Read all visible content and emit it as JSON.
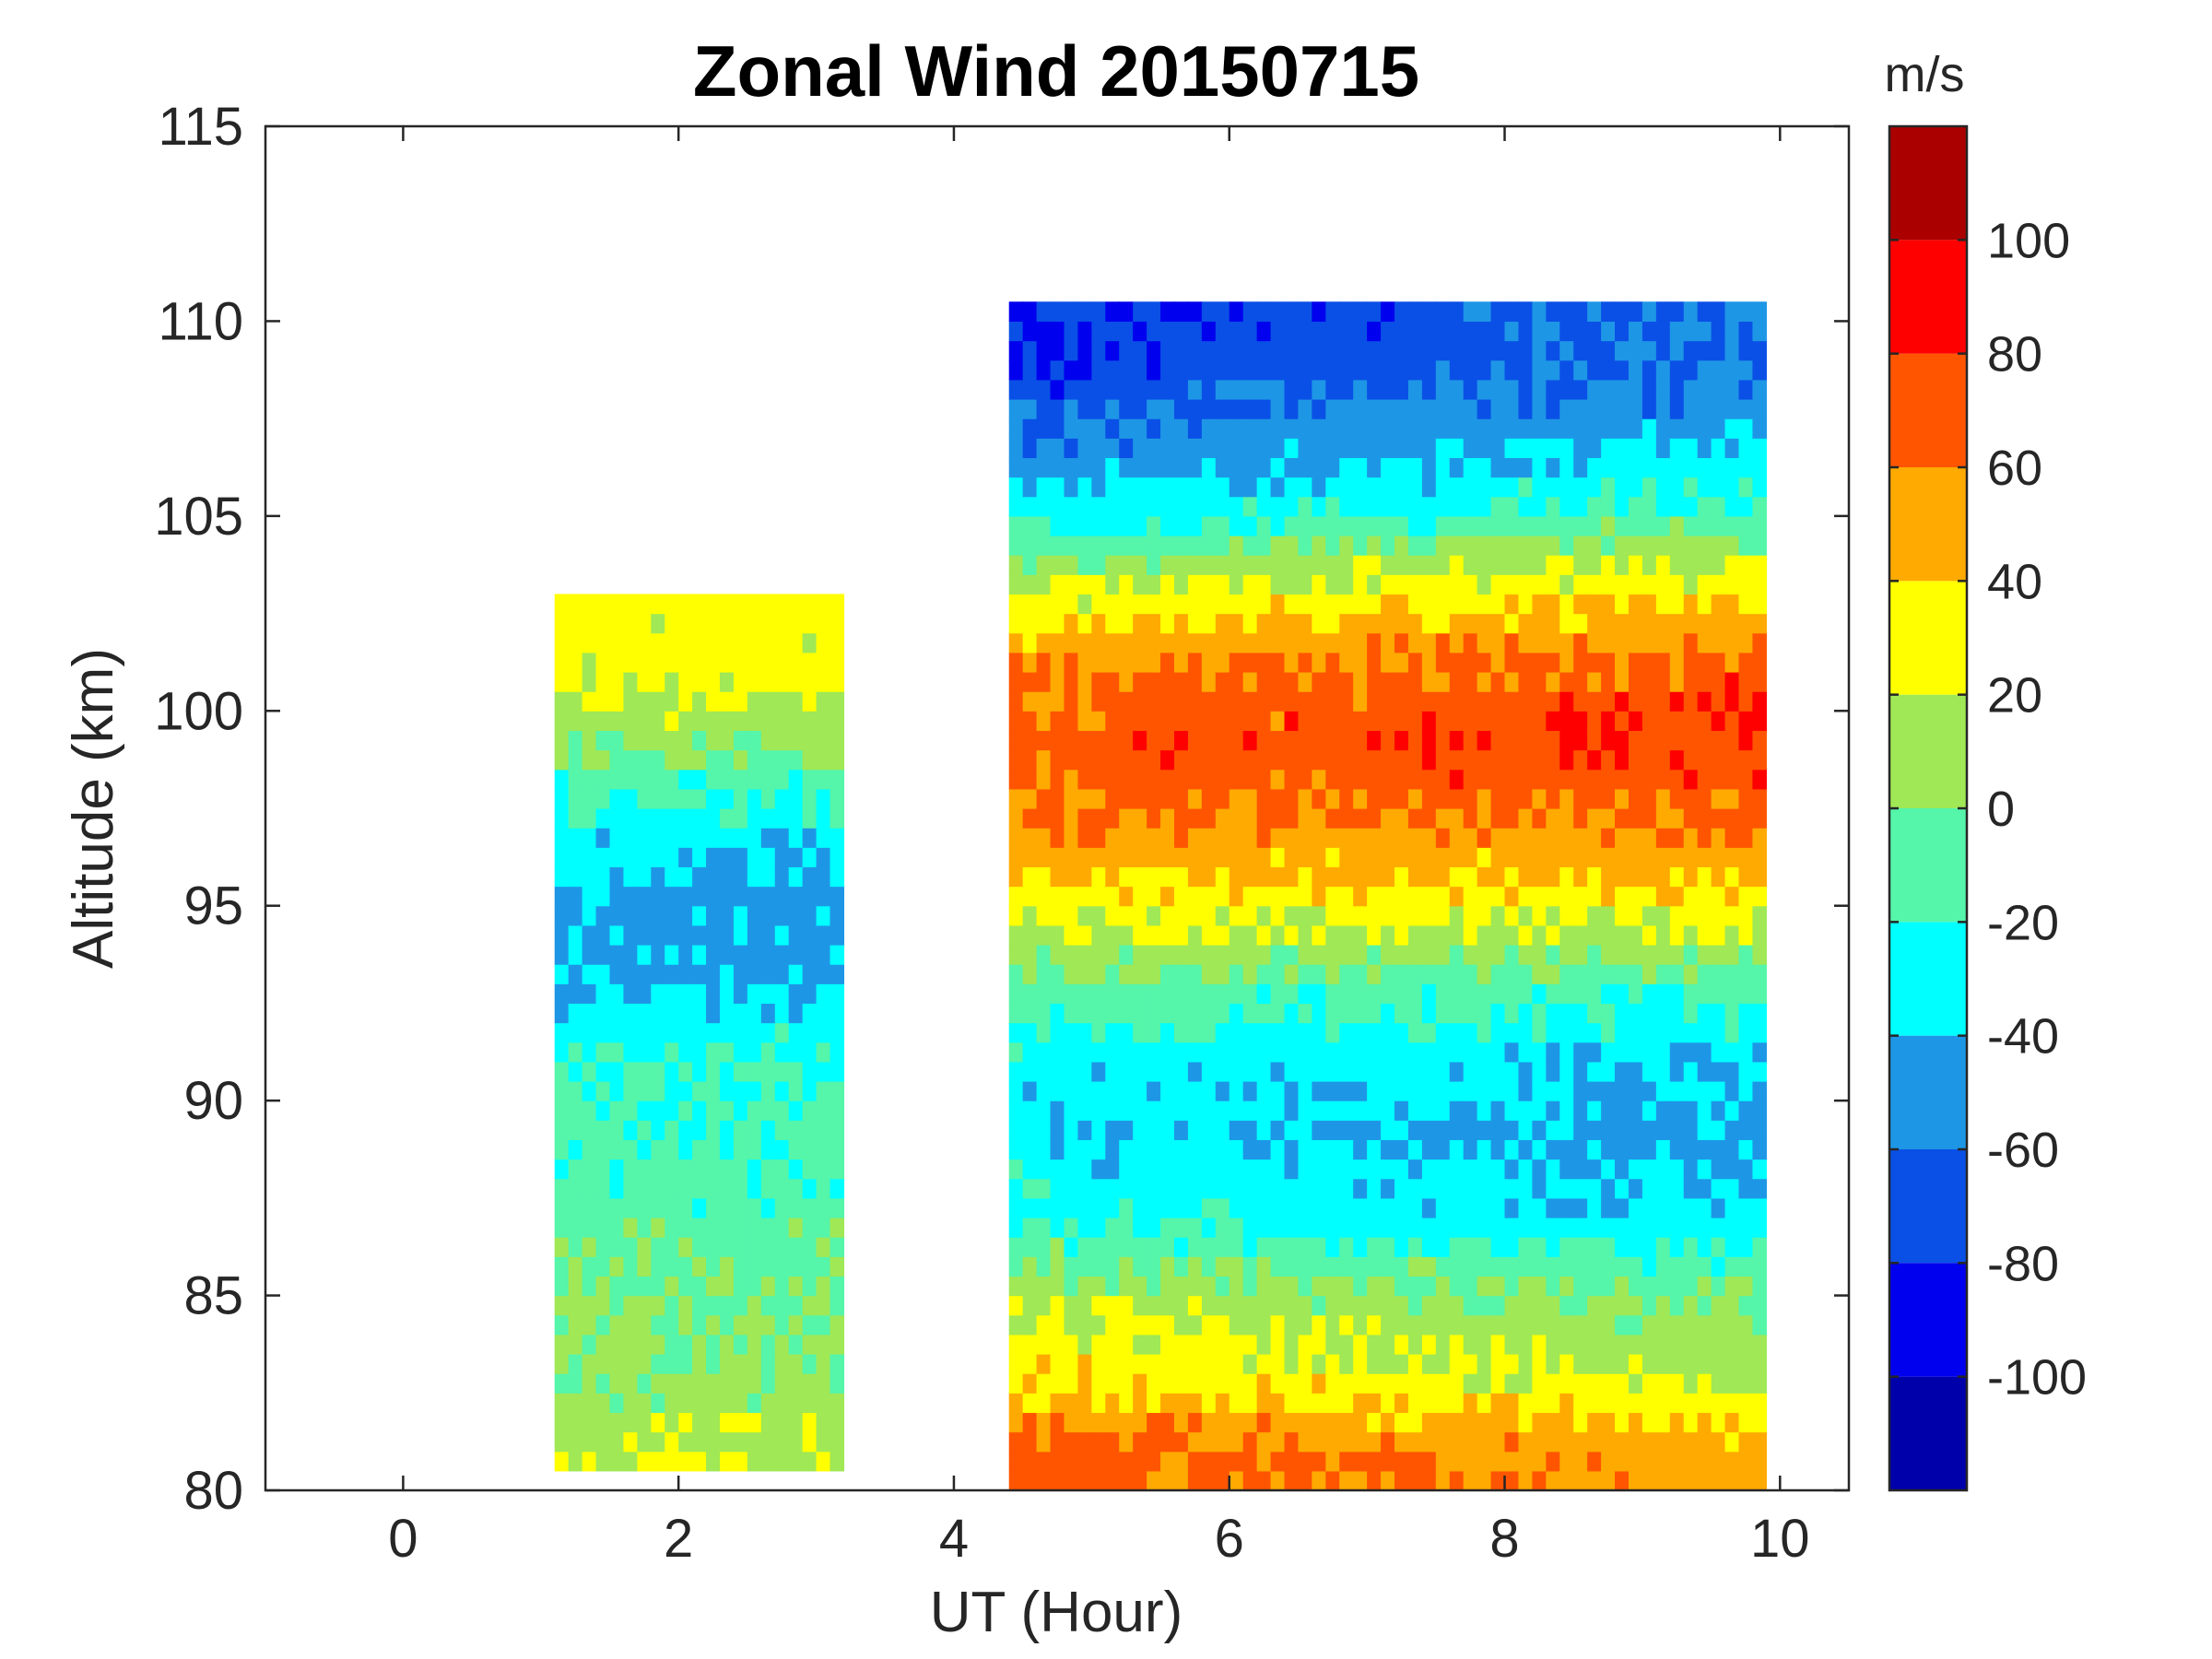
{
  "chart_data": {
    "type": "heatmap",
    "subtype": "filled-contour",
    "title": "Zonal Wind 20150715",
    "xlabel": "UT (Hour)",
    "ylabel": "Altitude (km)",
    "xlim": [
      -1,
      10.5
    ],
    "ylim": [
      80,
      115
    ],
    "xticks": [
      0,
      2,
      4,
      6,
      8,
      10
    ],
    "yticks": [
      80,
      85,
      90,
      95,
      100,
      105,
      110,
      115
    ],
    "colorbar": {
      "label": "m/s",
      "limits": [
        -120,
        120
      ],
      "levels": [
        -120,
        -100,
        -80,
        -60,
        -40,
        -20,
        0,
        20,
        40,
        60,
        80,
        100,
        120
      ],
      "ticks": [
        -100,
        -80,
        -60,
        -40,
        -20,
        0,
        20,
        40,
        60,
        80,
        100
      ],
      "colors": [
        "#0000aa",
        "#0000ee",
        "#0a50e6",
        "#1e96e6",
        "#00ffff",
        "#55f5aa",
        "#a0e855",
        "#ffff00",
        "#ffaa00",
        "#ff5500",
        "#ff0000",
        "#aa0000"
      ]
    },
    "grid": false,
    "data_blocks": [
      {
        "name": "block-1",
        "x_range": [
          1.1,
          3.2
        ],
        "alt_range": [
          80.5,
          103
        ],
        "altitudes_km": [
          81,
          83,
          85,
          87,
          89,
          91,
          93,
          95,
          97,
          99,
          101
        ],
        "zonal_wind_ms": [
          15,
          5,
          0,
          -10,
          -15,
          -20,
          -40,
          -50,
          -30,
          0,
          30
        ]
      },
      {
        "name": "block-2",
        "x_range": [
          4.4,
          9.9
        ],
        "alt_range": [
          80,
          110.5
        ],
        "altitudes_km": [
          81,
          83,
          85,
          87,
          89,
          91,
          93,
          95,
          97,
          99,
          101,
          103,
          105,
          107,
          109
        ],
        "zonal_wind_ms": [
          60,
          25,
          5,
          -30,
          -40,
          -35,
          -10,
          30,
          60,
          75,
          65,
          30,
          -20,
          -50,
          -70
        ]
      }
    ]
  }
}
